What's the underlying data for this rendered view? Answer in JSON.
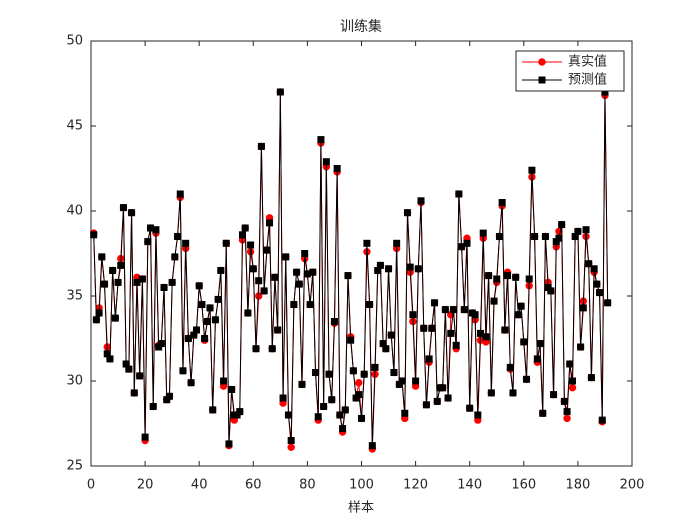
{
  "chart_data": {
    "type": "line",
    "title": "训练集",
    "x_label": "样本",
    "xlim": [
      0,
      200
    ],
    "xticks": [
      0,
      20,
      40,
      60,
      80,
      100,
      120,
      140,
      160,
      180,
      200
    ],
    "ylim": [
      25,
      50
    ],
    "yticks": [
      25,
      30,
      35,
      40,
      45,
      50
    ],
    "legend": "upper right",
    "x": [
      1,
      2,
      3,
      4,
      5,
      6,
      7,
      8,
      9,
      10,
      11,
      12,
      13,
      14,
      15,
      16,
      17,
      18,
      19,
      20,
      21,
      22,
      23,
      24,
      25,
      26,
      27,
      28,
      29,
      30,
      31,
      32,
      33,
      34,
      35,
      36,
      37,
      38,
      39,
      40,
      41,
      42,
      43,
      44,
      45,
      46,
      47,
      48,
      49,
      50,
      51,
      52,
      53,
      54,
      55,
      56,
      57,
      58,
      59,
      60,
      61,
      62,
      63,
      64,
      65,
      66,
      67,
      68,
      69,
      70,
      71,
      72,
      73,
      74,
      75,
      76,
      77,
      78,
      79,
      80,
      81,
      82,
      83,
      84,
      85,
      86,
      87,
      88,
      89,
      90,
      91,
      92,
      93,
      94,
      95,
      96,
      97,
      98,
      99,
      100,
      101,
      102,
      103,
      104,
      105,
      106,
      107,
      108,
      109,
      110,
      111,
      112,
      113,
      114,
      115,
      116,
      117,
      118,
      119,
      120,
      121,
      122,
      123,
      124,
      125,
      126,
      127,
      128,
      129,
      130,
      131,
      132,
      133,
      134,
      135,
      136,
      137,
      138,
      139,
      140,
      141,
      142,
      143,
      144,
      145,
      146,
      147,
      148,
      149,
      150,
      151,
      152,
      153,
      154,
      155,
      156,
      157,
      158,
      159,
      160,
      161,
      162,
      163,
      164,
      165,
      166,
      167,
      168,
      169,
      170,
      171,
      172,
      173,
      174,
      175,
      176,
      177,
      178,
      179,
      180,
      181,
      182,
      183,
      184,
      185,
      186,
      187,
      188,
      189,
      190,
      191
    ],
    "series": [
      {
        "name": "真实值",
        "color": "#ff0000",
        "marker": "circle",
        "values": [
          38.7,
          33.6,
          34.3,
          37.3,
          35.7,
          32.0,
          31.3,
          36.5,
          33.7,
          35.8,
          37.2,
          40.2,
          31.0,
          30.7,
          39.9,
          29.3,
          36.1,
          30.3,
          36.0,
          26.5,
          38.2,
          39.0,
          28.5,
          38.7,
          32.1,
          32.2,
          35.5,
          28.9,
          29.1,
          35.8,
          37.3,
          38.5,
          40.8,
          30.6,
          37.8,
          32.5,
          29.9,
          32.7,
          33.0,
          35.6,
          34.5,
          32.4,
          33.5,
          34.3,
          28.3,
          33.6,
          34.8,
          36.5,
          29.7,
          38.1,
          26.2,
          29.5,
          27.7,
          28.0,
          28.2,
          38.3,
          39.0,
          34.0,
          37.6,
          36.6,
          31.9,
          35.0,
          43.8,
          35.3,
          37.7,
          39.6,
          31.9,
          36.1,
          33.0,
          47.0,
          28.7,
          37.3,
          28.0,
          26.1,
          34.5,
          36.4,
          35.7,
          29.8,
          37.2,
          36.3,
          34.5,
          36.4,
          30.5,
          27.7,
          44.0,
          28.5,
          42.6,
          30.4,
          28.9,
          33.4,
          42.3,
          28.0,
          27.0,
          28.3,
          36.2,
          32.6,
          30.6,
          29.0,
          29.9,
          27.8,
          30.4,
          37.6,
          34.5,
          26.0,
          30.4,
          36.5,
          36.8,
          32.2,
          31.9,
          36.6,
          32.7,
          30.5,
          37.8,
          29.8,
          30.0,
          27.8,
          39.9,
          36.4,
          33.5,
          29.7,
          36.6,
          40.5,
          33.1,
          28.6,
          31.1,
          33.1,
          34.6,
          28.8,
          29.6,
          29.6,
          34.2,
          29.0,
          33.9,
          34.2,
          31.9,
          41.0,
          37.9,
          34.2,
          38.4,
          28.4,
          34.0,
          33.6,
          27.7,
          32.4,
          38.4,
          32.3,
          36.2,
          29.3,
          34.7,
          35.8,
          38.5,
          40.3,
          33.0,
          36.4,
          30.7,
          29.3,
          36.1,
          33.9,
          34.4,
          32.3,
          30.1,
          35.6,
          42.0,
          38.5,
          31.1,
          32.2,
          28.1,
          38.5,
          35.8,
          35.3,
          29.2,
          37.9,
          38.8,
          39.2,
          28.8,
          27.8,
          31.0,
          29.6,
          38.5,
          38.8,
          32.0,
          34.7,
          38.5,
          36.9,
          30.2,
          36.4,
          35.7,
          35.2,
          27.6,
          46.8,
          34.6
        ]
      },
      {
        "name": "预测值",
        "color": "#000000",
        "marker": "square",
        "values": [
          38.6,
          33.6,
          34.0,
          37.3,
          35.7,
          31.6,
          31.3,
          36.5,
          33.7,
          35.8,
          36.8,
          40.2,
          31.0,
          30.7,
          39.9,
          29.3,
          35.8,
          30.3,
          36.0,
          26.7,
          38.2,
          39.0,
          28.5,
          38.9,
          32.0,
          32.2,
          35.5,
          28.9,
          29.1,
          35.8,
          37.3,
          38.5,
          41.0,
          30.6,
          38.1,
          32.5,
          29.9,
          32.7,
          33.0,
          35.6,
          34.5,
          32.5,
          33.5,
          34.3,
          28.3,
          33.6,
          34.8,
          36.5,
          30.0,
          38.1,
          26.3,
          29.5,
          28.0,
          28.0,
          28.2,
          38.6,
          39.0,
          34.0,
          38.0,
          36.6,
          31.9,
          35.9,
          43.8,
          35.3,
          37.7,
          39.3,
          31.9,
          36.1,
          33.0,
          47.0,
          29.0,
          37.3,
          28.0,
          26.5,
          34.5,
          36.4,
          35.7,
          29.8,
          37.5,
          36.3,
          34.5,
          36.4,
          30.5,
          27.9,
          44.2,
          28.5,
          42.9,
          30.4,
          28.9,
          33.5,
          42.5,
          28.0,
          27.2,
          28.3,
          36.2,
          32.4,
          30.6,
          29.0,
          29.2,
          27.8,
          30.4,
          38.1,
          34.5,
          26.2,
          30.8,
          36.5,
          36.8,
          32.2,
          31.9,
          36.6,
          32.7,
          30.5,
          38.1,
          29.8,
          30.0,
          28.1,
          39.9,
          36.7,
          33.9,
          30.0,
          36.6,
          40.6,
          33.1,
          28.6,
          31.3,
          33.1,
          34.6,
          28.8,
          29.6,
          29.6,
          34.2,
          29.0,
          32.8,
          34.2,
          32.1,
          41.0,
          37.9,
          34.2,
          38.1,
          28.4,
          34.0,
          33.9,
          28.0,
          32.8,
          38.7,
          32.6,
          36.2,
          29.3,
          34.7,
          36.0,
          38.5,
          40.5,
          33.0,
          36.2,
          30.8,
          29.3,
          36.1,
          33.9,
          34.4,
          32.3,
          30.1,
          36.0,
          42.4,
          38.5,
          31.3,
          32.2,
          28.1,
          38.5,
          35.5,
          35.3,
          29.2,
          38.2,
          38.4,
          39.2,
          28.8,
          28.2,
          31.0,
          30.0,
          38.5,
          38.8,
          32.0,
          34.3,
          38.9,
          36.9,
          30.2,
          36.6,
          35.7,
          35.2,
          27.7,
          47.0,
          34.6
        ]
      }
    ]
  }
}
